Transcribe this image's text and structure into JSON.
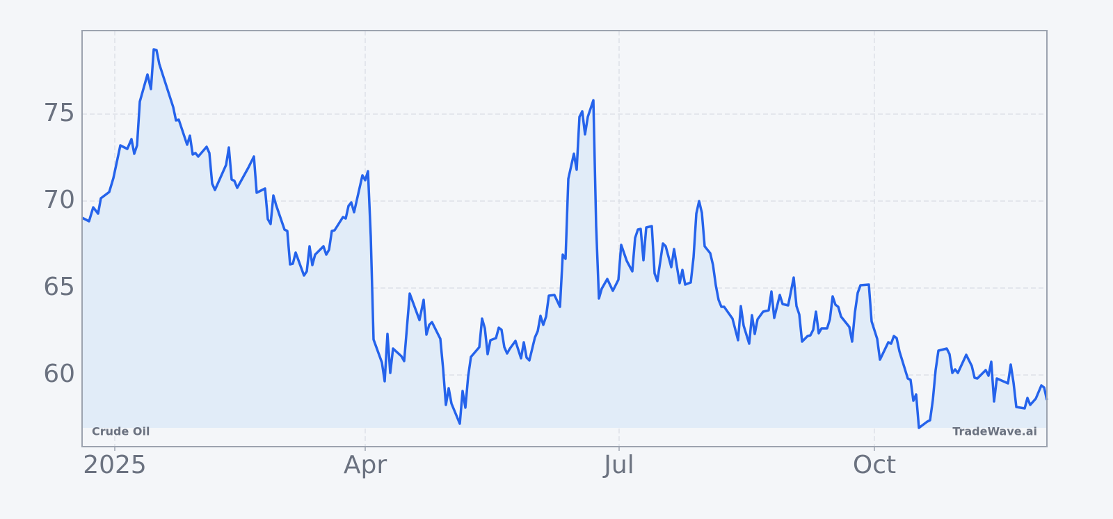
{
  "chart_data": {
    "type": "line",
    "x": [
      -11.75,
      -9.25,
      -7.75,
      -6,
      -5,
      -2,
      -0.5,
      2,
      4.5,
      6,
      7,
      8,
      9,
      11.75,
      13,
      14,
      15,
      16,
      21,
      22,
      23,
      26,
      27,
      28,
      29,
      30,
      33,
      34,
      35,
      36,
      40,
      41,
      42,
      43,
      44,
      48,
      50,
      51,
      54,
      55,
      56,
      57,
      58,
      61,
      62,
      63,
      64,
      65,
      68,
      69,
      70,
      71,
      72,
      75,
      76,
      77,
      78,
      79,
      82,
      83,
      84,
      85,
      86,
      89,
      90,
      91,
      92,
      93,
      96,
      97,
      98,
      99,
      100,
      103,
      104,
      106,
      109.5,
      111,
      112,
      113,
      114,
      117,
      118,
      119,
      120,
      121,
      124,
      125,
      126,
      127,
      128,
      131,
      132,
      133,
      134,
      135,
      137,
      138,
      139,
      140,
      141,
      142,
      144,
      146,
      147,
      148,
      149,
      151,
      152,
      153,
      154,
      155,
      156,
      158,
      160,
      161,
      162,
      163,
      165,
      166,
      167,
      168,
      169,
      170,
      172,
      173,
      174,
      175,
      177,
      179,
      181,
      182,
      184,
      186,
      187,
      188,
      189,
      190,
      191,
      193,
      194,
      195,
      197,
      198,
      200,
      201,
      203,
      204,
      205,
      207,
      208,
      209,
      210,
      211,
      212,
      214,
      215,
      216,
      217,
      218,
      219,
      222,
      224,
      225,
      226,
      228,
      229,
      230,
      231,
      233,
      235,
      236,
      237,
      239,
      240,
      242,
      244,
      245,
      246,
      247,
      249,
      250,
      251,
      252,
      253,
      254,
      256,
      257,
      258,
      259,
      260,
      261,
      264,
      265,
      266,
      267,
      268,
      271,
      272,
      274,
      275,
      278,
      279,
      280,
      281,
      282,
      285,
      286,
      287,
      288,
      289,
      292,
      293,
      294,
      295,
      296,
      299,
      300,
      301,
      302,
      303,
      306,
      308,
      309,
      310,
      313,
      314,
      315,
      316,
      317,
      321,
      322,
      323,
      324,
      327,
      328,
      329,
      331,
      333,
      334,
      335
    ],
    "series": [
      {
        "name": "Crude Oil",
        "color": "#2563eb",
        "fill": "#e1ecf8",
        "values": [
          69.04,
          68.84,
          69.64,
          69.28,
          70.16,
          70.52,
          71.32,
          73.2,
          73.0,
          73.56,
          72.72,
          73.2,
          75.72,
          77.28,
          76.44,
          78.72,
          78.68,
          77.88,
          75.4,
          74.64,
          74.68,
          73.24,
          73.76,
          72.68,
          72.76,
          72.56,
          73.12,
          72.76,
          71.0,
          70.64,
          72.08,
          73.08,
          71.24,
          71.16,
          70.76,
          71.92,
          72.56,
          70.48,
          70.72,
          68.96,
          68.68,
          70.32,
          69.76,
          68.36,
          68.28,
          66.36,
          66.4,
          67.04,
          65.72,
          65.96,
          67.4,
          66.32,
          66.92,
          67.4,
          66.92,
          67.2,
          68.28,
          68.32,
          69.08,
          69.0,
          69.72,
          69.92,
          69.36,
          71.48,
          71.2,
          71.72,
          67.96,
          62.04,
          60.72,
          59.64,
          62.36,
          60.12,
          61.52,
          61.08,
          60.8,
          64.68,
          63.16,
          64.32,
          62.32,
          62.88,
          63.04,
          62.08,
          60.36,
          58.28,
          59.24,
          58.36,
          57.2,
          59.08,
          58.12,
          59.92,
          61.04,
          61.6,
          63.24,
          62.68,
          61.2,
          62.0,
          62.12,
          62.72,
          62.6,
          61.6,
          61.24,
          61.52,
          61.96,
          60.96,
          61.88,
          61.0,
          60.84,
          62.16,
          62.52,
          63.4,
          62.88,
          63.36,
          64.56,
          64.6,
          63.92,
          66.92,
          66.68,
          71.28,
          72.72,
          71.8,
          74.84,
          75.16,
          73.84,
          74.84,
          75.8,
          68.56,
          64.4,
          64.96,
          65.52,
          64.84,
          65.48,
          67.48,
          66.56,
          65.96,
          67.88,
          68.36,
          68.4,
          66.6,
          68.48,
          68.56,
          65.84,
          65.4,
          67.56,
          67.4,
          66.2,
          67.24,
          65.28,
          66.04,
          65.2,
          65.32,
          66.76,
          69.28,
          70.0,
          69.32,
          67.4,
          67.0,
          66.32,
          65.16,
          64.32,
          63.92,
          63.92,
          63.24,
          62.0,
          63.96,
          62.84,
          61.8,
          63.44,
          62.36,
          63.2,
          63.64,
          63.72,
          64.8,
          63.28,
          64.6,
          64.08,
          64.0,
          65.6,
          63.96,
          63.48,
          61.92,
          62.24,
          62.28,
          62.6,
          63.64,
          62.4,
          62.68,
          62.68,
          63.2,
          64.52,
          64.04,
          63.92,
          63.36,
          62.76,
          61.92,
          63.6,
          64.72,
          65.16,
          65.2,
          63.08,
          62.08,
          60.88,
          61.88,
          61.8,
          62.24,
          62.12,
          61.36,
          59.8,
          59.72,
          58.52,
          58.88,
          56.96,
          57.32,
          57.4,
          58.56,
          60.28,
          61.4,
          61.52,
          61.2,
          60.12,
          60.32,
          60.12,
          61.16,
          60.52,
          59.84,
          59.8,
          60.28,
          59.96,
          60.76,
          58.48,
          59.8,
          59.52,
          60.6,
          59.56,
          58.16,
          58.08,
          58.68,
          58.28,
          58.64,
          59.4,
          59.28,
          58.56
        ]
      }
    ],
    "xlim": [
      -11.75,
      335
    ],
    "xticks": [
      {
        "value": 0,
        "label": "2025"
      },
      {
        "value": 90,
        "label": "Apr"
      },
      {
        "value": 181.25,
        "label": "Jul"
      },
      {
        "value": 273,
        "label": "Oct"
      }
    ],
    "ylim": [
      55.88,
      79.8
    ],
    "yticks": [
      60,
      65,
      70,
      75
    ],
    "grid": true,
    "watermark": "TradeWave.ai"
  }
}
